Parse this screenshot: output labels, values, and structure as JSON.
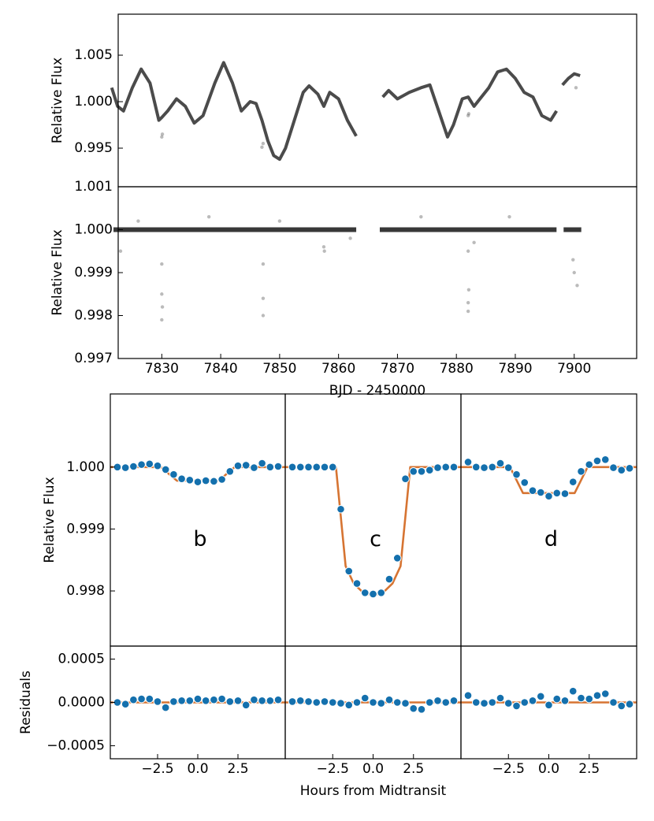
{
  "chart_data": [
    {
      "type": "line",
      "xlim": [
        7822.6,
        7910.6
      ],
      "ylim": [
        0.99085,
        1.00941
      ],
      "yticks": [
        0.995,
        {
          "value": 1,
          "label": "1.000"
        },
        1.005
      ],
      "ylabel": "Relative Flux",
      "series": [
        {
          "mode": "line",
          "color": "#2b2b2b",
          "x": [
            7821.5,
            7822.5,
            7823.5,
            7825,
            7826.5,
            7828,
            7829.5,
            7830,
            7831,
            7832.5,
            7834,
            7835.5,
            7837,
            7839,
            7840.5,
            7842,
            7843.5,
            7845,
            7846,
            7847,
            7848,
            7849,
            7850,
            7851,
            7852.5,
            7854,
            7855,
            7856.5,
            7857.5,
            7858.5,
            7860,
            7861.5,
            7863,
            7865,
            7867.5,
            7868.5,
            7870,
            7872,
            7874,
            7875.5,
            7877,
            7878.5,
            7879.5,
            7881,
            7882,
            7883,
            7884,
            7885.5,
            7887,
            7888.5,
            7890,
            7891.5,
            7893,
            7894.5,
            7896,
            7897,
            7897.5,
            7898,
            7899,
            7900,
            7901
          ],
          "values": [
            1.0015,
            0.9995,
            0.999,
            1.0015,
            1.0035,
            1.002,
            0.998,
            0.9983,
            0.999,
            1.0003,
            0.9995,
            0.9977,
            0.9985,
            1.002,
            1.0042,
            1.002,
            0.999,
            1.0,
            0.9998,
            0.998,
            0.9958,
            0.9942,
            0.9938,
            0.995,
            0.998,
            1.001,
            1.0017,
            1.0008,
            0.9995,
            1.001,
            1.0003,
            0.998,
            0.9963,
            null,
            1.0005,
            1.0012,
            1.0003,
            1.001,
            1.0015,
            1.0018,
            0.999,
            0.9962,
            0.9975,
            1.0003,
            1.0005,
            0.9995,
            1.0003,
            1.0015,
            1.0032,
            1.0035,
            1.0025,
            1.001,
            1.0005,
            0.9985,
            0.998,
            0.999,
            null,
            1.0018,
            1.0025,
            1.003,
            1.0028
          ]
        },
        {
          "mode": "markers",
          "color": "#555555",
          "x": [
            7830,
            7830.1,
            7847,
            7847.2,
            7882,
            7882.1,
            7900.3
          ],
          "values": [
            0.9962,
            0.9965,
            0.9951,
            0.9955,
            0.9985,
            0.9987,
            1.0015
          ]
        }
      ]
    },
    {
      "type": "scatter",
      "xlim": [
        7822.6,
        7910.6
      ],
      "ylim": [
        0.997,
        1.001
      ],
      "yticks": [
        0.997,
        0.998,
        0.999,
        {
          "value": 1,
          "label": "1.000"
        },
        1.001
      ],
      "xticks": [
        7830,
        7840,
        7850,
        7860,
        7870,
        7880,
        7890,
        7900
      ],
      "ylabel": "Relative Flux",
      "xlabel": "BJD - 2450000",
      "series": [
        {
          "mode": "line",
          "color": "#222222",
          "x": [
            7821.8,
            7863,
            7865,
            7867,
            7897,
            7897.5,
            7898.2,
            7901.2
          ],
          "values": [
            1,
            1,
            null,
            1,
            1,
            null,
            1,
            1
          ]
        },
        {
          "mode": "markers",
          "color": "#555555",
          "x": [
            7830,
            7830,
            7830,
            7830.1,
            7823,
            7847.2,
            7847.2,
            7847.2,
            7857.5,
            7857.6,
            7882,
            7882.1,
            7882,
            7882,
            7899.8,
            7900,
            7900.5,
            7838,
            7850,
            7883,
            7874,
            7826,
            7862,
            7889
          ],
          "values": [
            0.9992,
            0.9985,
            0.9979,
            0.9982,
            0.9995,
            0.9992,
            0.9984,
            0.998,
            0.9996,
            0.9995,
            0.9995,
            0.9986,
            0.9983,
            0.9981,
            0.9993,
            0.999,
            0.9987,
            1.0003,
            1.0002,
            0.9997,
            1.0003,
            1.0002,
            0.9998,
            1.0003
          ]
        }
      ]
    },
    {
      "type": "scatter",
      "xlim": [
        -5.44,
        5.44
      ],
      "ylim": [
        0.99711,
        1.00118
      ],
      "yticks": [
        0.998,
        0.999,
        {
          "value": 1,
          "label": "1.000"
        }
      ],
      "ylabel": "Relative Flux",
      "annotation": "b",
      "series": [
        {
          "mode": "line",
          "color": "#d2651c",
          "x": [
            -5.44,
            -2.3,
            -1.3,
            1.3,
            2.3,
            5.44
          ],
          "values": [
            1,
            1,
            0.99978,
            0.99978,
            1,
            1
          ]
        },
        {
          "mode": "markers",
          "color": "#1470ad",
          "x": [
            -5,
            -4.5,
            -4,
            -3.5,
            -3,
            -2.5,
            -2,
            -1.5,
            -1,
            -0.5,
            0,
            0.5,
            1,
            1.5,
            2,
            2.5,
            3,
            3.5,
            4,
            4.5,
            5
          ],
          "values": [
            1.0,
            0.99999,
            1.00001,
            1.00004,
            1.00005,
            1.00002,
            0.99996,
            0.99988,
            0.99981,
            0.99979,
            0.99976,
            0.99978,
            0.99977,
            0.9998,
            0.99993,
            1.00002,
            1.00003,
            0.99999,
            1.00006,
            1.0,
            1.00001
          ]
        }
      ]
    },
    {
      "type": "scatter",
      "xlim": [
        -5.44,
        5.44
      ],
      "ylim": [
        0.99711,
        1.00118
      ],
      "annotation": "c",
      "series": [
        {
          "mode": "line",
          "color": "#d2651c",
          "x": [
            -5.44,
            -2.3,
            -1.7,
            -1.2,
            -0.6,
            0,
            0.6,
            1.2,
            1.7,
            2.3,
            5.44
          ],
          "values": [
            1,
            1,
            0.9984,
            0.99812,
            0.99797,
            0.99793,
            0.99797,
            0.99812,
            0.9984,
            1,
            1
          ]
        },
        {
          "mode": "markers",
          "color": "#1470ad",
          "x": [
            -5,
            -4.5,
            -4,
            -3.5,
            -3,
            -2.5,
            -2,
            -1.5,
            -1,
            -0.5,
            0,
            0.5,
            1,
            1.5,
            2,
            2.5,
            3,
            3.5,
            4,
            4.5,
            5
          ],
          "values": [
            1.0,
            1.0,
            1.0,
            1.0,
            1.0,
            1.0,
            0.99932,
            0.99832,
            0.99812,
            0.99797,
            0.99795,
            0.99797,
            0.99819,
            0.99853,
            0.99981,
            0.99993,
            0.99993,
            0.99995,
            0.99999,
            1.0,
            1.0
          ]
        }
      ]
    },
    {
      "type": "scatter",
      "xlim": [
        -5.44,
        5.44
      ],
      "ylim": [
        0.99711,
        1.00118
      ],
      "annotation": "d",
      "series": [
        {
          "mode": "line",
          "color": "#d2651c",
          "x": [
            -5.44,
            -2.4,
            -1.6,
            1.6,
            2.4,
            5.44
          ],
          "values": [
            1,
            1,
            0.99958,
            0.99958,
            1,
            1
          ]
        },
        {
          "mode": "markers",
          "color": "#1470ad",
          "x": [
            -5,
            -4.5,
            -4,
            -3.5,
            -3,
            -2.5,
            -2,
            -1.5,
            -1,
            -0.5,
            0,
            0.5,
            1,
            1.5,
            2,
            2.5,
            3,
            3.5,
            4,
            4.5,
            5
          ],
          "values": [
            1.00008,
            1.0,
            0.99999,
            1.0,
            1.00006,
            0.99999,
            0.99988,
            0.99975,
            0.99962,
            0.99959,
            0.99953,
            0.99958,
            0.99957,
            0.99976,
            0.99993,
            1.00004,
            1.0001,
            1.00012,
            0.99999,
            0.99995,
            0.99998
          ]
        }
      ]
    },
    {
      "type": "scatter",
      "xlim": [
        -5.44,
        5.44
      ],
      "ylim": [
        -0.00065,
        0.00065
      ],
      "yticks": [
        {
          "value": -0.0005,
          "label": "−0.0005"
        },
        {
          "value": 0,
          "label": "0.0000"
        },
        0.0005
      ],
      "xticks": [
        {
          "value": -2.5,
          "label": "−2.5"
        },
        {
          "value": 0,
          "label": "0.0"
        },
        2.5
      ],
      "ylabel": "Residuals",
      "series": [
        {
          "mode": "line",
          "color": "#d2651c",
          "x": [
            -5.44,
            5.44
          ],
          "values": [
            0,
            0
          ]
        },
        {
          "mode": "markers",
          "color": "#1470ad",
          "x": [
            -5,
            -4.5,
            -4,
            -3.5,
            -3,
            -2.5,
            -2,
            -1.5,
            -1,
            -0.5,
            0,
            0.5,
            1,
            1.5,
            2,
            2.5,
            3,
            3.5,
            4,
            4.5,
            5
          ],
          "values": [
            0.0,
            -2e-05,
            3e-05,
            4e-05,
            4e-05,
            1e-05,
            -6e-05,
            1e-05,
            2e-05,
            2e-05,
            4e-05,
            2e-05,
            3e-05,
            4e-05,
            1e-05,
            2e-05,
            -3e-05,
            3e-05,
            2e-05,
            2e-05,
            3e-05
          ]
        }
      ]
    },
    {
      "type": "scatter",
      "xlim": [
        -5.44,
        5.44
      ],
      "ylim": [
        -0.00065,
        0.00065
      ],
      "xticks": [
        {
          "value": -2.5,
          "label": "−2.5"
        },
        {
          "value": 0,
          "label": "0.0"
        },
        2.5
      ],
      "xlabel": "Hours from Midtransit",
      "series": [
        {
          "mode": "line",
          "color": "#d2651c",
          "x": [
            -5.44,
            5.44
          ],
          "values": [
            0,
            0
          ]
        },
        {
          "mode": "markers",
          "color": "#1470ad",
          "x": [
            -5,
            -4.5,
            -4,
            -3.5,
            -3,
            -2.5,
            -2,
            -1.5,
            -1,
            -0.5,
            0,
            0.5,
            1,
            1.5,
            2,
            2.5,
            3,
            3.5,
            4,
            4.5,
            5
          ],
          "values": [
            1e-05,
            2e-05,
            1e-05,
            0.0,
            1e-05,
            0.0,
            -1e-05,
            -3e-05,
            0.0,
            5e-05,
            0.0,
            -1e-05,
            3e-05,
            0.0,
            -1e-05,
            -7e-05,
            -8e-05,
            0.0,
            2e-05,
            0.0,
            2e-05
          ]
        }
      ]
    },
    {
      "type": "scatter",
      "xlim": [
        -5.44,
        5.44
      ],
      "ylim": [
        -0.00065,
        0.00065
      ],
      "xticks": [
        {
          "value": -2.5,
          "label": "−2.5"
        },
        {
          "value": 0,
          "label": "0.0"
        },
        2.5
      ],
      "series": [
        {
          "mode": "line",
          "color": "#d2651c",
          "x": [
            -5.44,
            5.44
          ],
          "values": [
            0,
            0
          ]
        },
        {
          "mode": "markers",
          "color": "#1470ad",
          "x": [
            -5,
            -4.5,
            -4,
            -3.5,
            -3,
            -2.5,
            -2,
            -1.5,
            -1,
            -0.5,
            0,
            0.5,
            1,
            1.5,
            2,
            2.5,
            3,
            3.5,
            4,
            4.5,
            5
          ],
          "values": [
            8e-05,
            0.0,
            -1e-05,
            0.0,
            5e-05,
            -1e-05,
            -4e-05,
            0.0,
            2e-05,
            7e-05,
            -3e-05,
            4e-05,
            2e-05,
            0.00013,
            5e-05,
            4e-05,
            8e-05,
            0.0001,
            0.0,
            -4e-05,
            -2e-05
          ]
        }
      ]
    }
  ]
}
